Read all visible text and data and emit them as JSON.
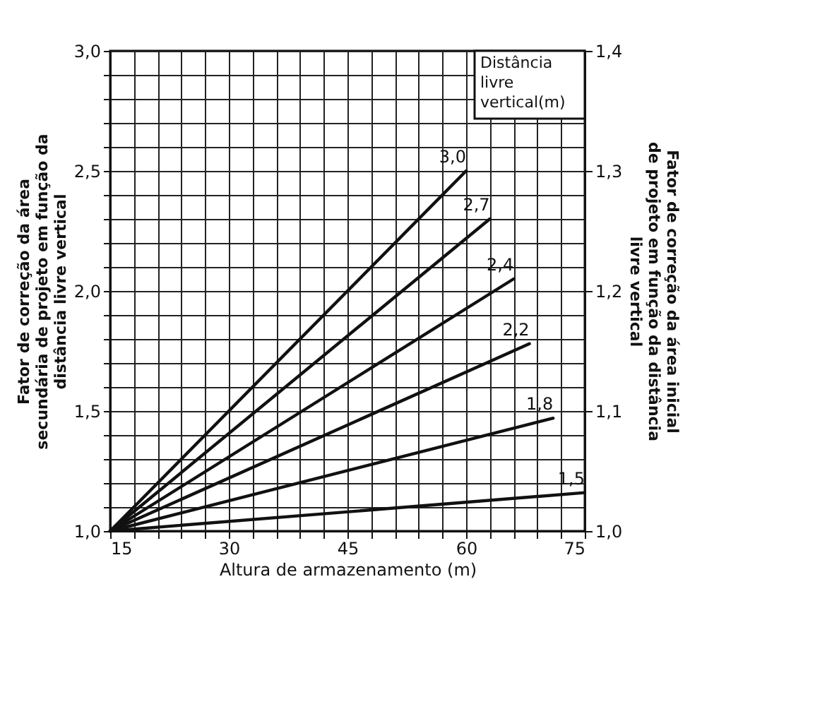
{
  "chart_data": {
    "type": "line",
    "xlabel": "Altura de armazenamento (m)",
    "ylabel": "Fator de correção da área secundária de projeto em função da distância livre vertical",
    "y2label": "Fator de correção da área inicial de projeto em função da distância livre vertical",
    "legend_title": "Distância livre vertical(m)",
    "series": [
      {
        "name": "3,0",
        "color": "#111111",
        "x": [
          15,
          60
        ],
        "values": [
          1.0,
          2.5
        ]
      },
      {
        "name": "2,7",
        "color": "#111111",
        "x": [
          15,
          63
        ],
        "values": [
          1.0,
          2.3
        ]
      },
      {
        "name": "2,4",
        "color": "#111111",
        "x": [
          15,
          66
        ],
        "values": [
          1.0,
          2.05
        ]
      },
      {
        "name": "2,2",
        "color": "#111111",
        "x": [
          15,
          68
        ],
        "values": [
          1.0,
          1.78
        ]
      },
      {
        "name": "1,8",
        "color": "#111111",
        "x": [
          15,
          71
        ],
        "values": [
          1.0,
          1.47
        ]
      },
      {
        "name": "1,5",
        "color": "#111111",
        "x": [
          15,
          75
        ],
        "values": [
          1.0,
          1.16
        ]
      }
    ],
    "xlim": [
      15,
      75
    ],
    "xticks": [
      15,
      {
        "value": 18,
        "label": null
      },
      {
        "value": 21,
        "label": null
      },
      {
        "value": 24,
        "label": null
      },
      {
        "value": 27,
        "label": null
      },
      30,
      {
        "value": 33,
        "label": null
      },
      {
        "value": 36,
        "label": null
      },
      {
        "value": 39,
        "label": null
      },
      {
        "value": 42,
        "label": null
      },
      45,
      {
        "value": 48,
        "label": null
      },
      {
        "value": 51,
        "label": null
      },
      {
        "value": 54,
        "label": null
      },
      {
        "value": 57,
        "label": null
      },
      60,
      {
        "value": 63,
        "label": null
      },
      {
        "value": 66,
        "label": null
      },
      {
        "value": 69,
        "label": null
      },
      {
        "value": 72,
        "label": null
      },
      75
    ],
    "ylim": [
      1.0,
      3.0
    ],
    "yticks": [
      {
        "value": 1.0,
        "label": "1,0"
      },
      {
        "value": 1.1,
        "label": null
      },
      {
        "value": 1.2,
        "label": null
      },
      {
        "value": 1.3,
        "label": null
      },
      {
        "value": 1.4,
        "label": null
      },
      {
        "value": 1.5,
        "label": "1,5"
      },
      {
        "value": 1.6,
        "label": null
      },
      {
        "value": 1.7,
        "label": null
      },
      {
        "value": 1.8,
        "label": null
      },
      {
        "value": 1.9,
        "label": null
      },
      {
        "value": 2.0,
        "label": "2,0"
      },
      {
        "value": 2.1,
        "label": null
      },
      {
        "value": 2.2,
        "label": null
      },
      {
        "value": 2.3,
        "label": null
      },
      {
        "value": 2.4,
        "label": null
      },
      {
        "value": 2.5,
        "label": "2,5"
      },
      {
        "value": 2.6,
        "label": null
      },
      {
        "value": 2.7,
        "label": null
      },
      {
        "value": 2.8,
        "label": null
      },
      {
        "value": 2.9,
        "label": null
      },
      {
        "value": 3.0,
        "label": "3,0"
      }
    ],
    "y2lim": [
      1.0,
      1.4
    ],
    "y2ticks": [
      {
        "value": 1.0,
        "label": "1,0"
      },
      {
        "value": 1.1,
        "label": "1,1"
      },
      {
        "value": 1.2,
        "label": "1,2"
      },
      {
        "value": 1.3,
        "label": "1,3"
      },
      {
        "value": 1.4,
        "label": "1,4"
      }
    ],
    "grid": true,
    "legend": false,
    "marker": "none",
    "line_style": "solid"
  }
}
